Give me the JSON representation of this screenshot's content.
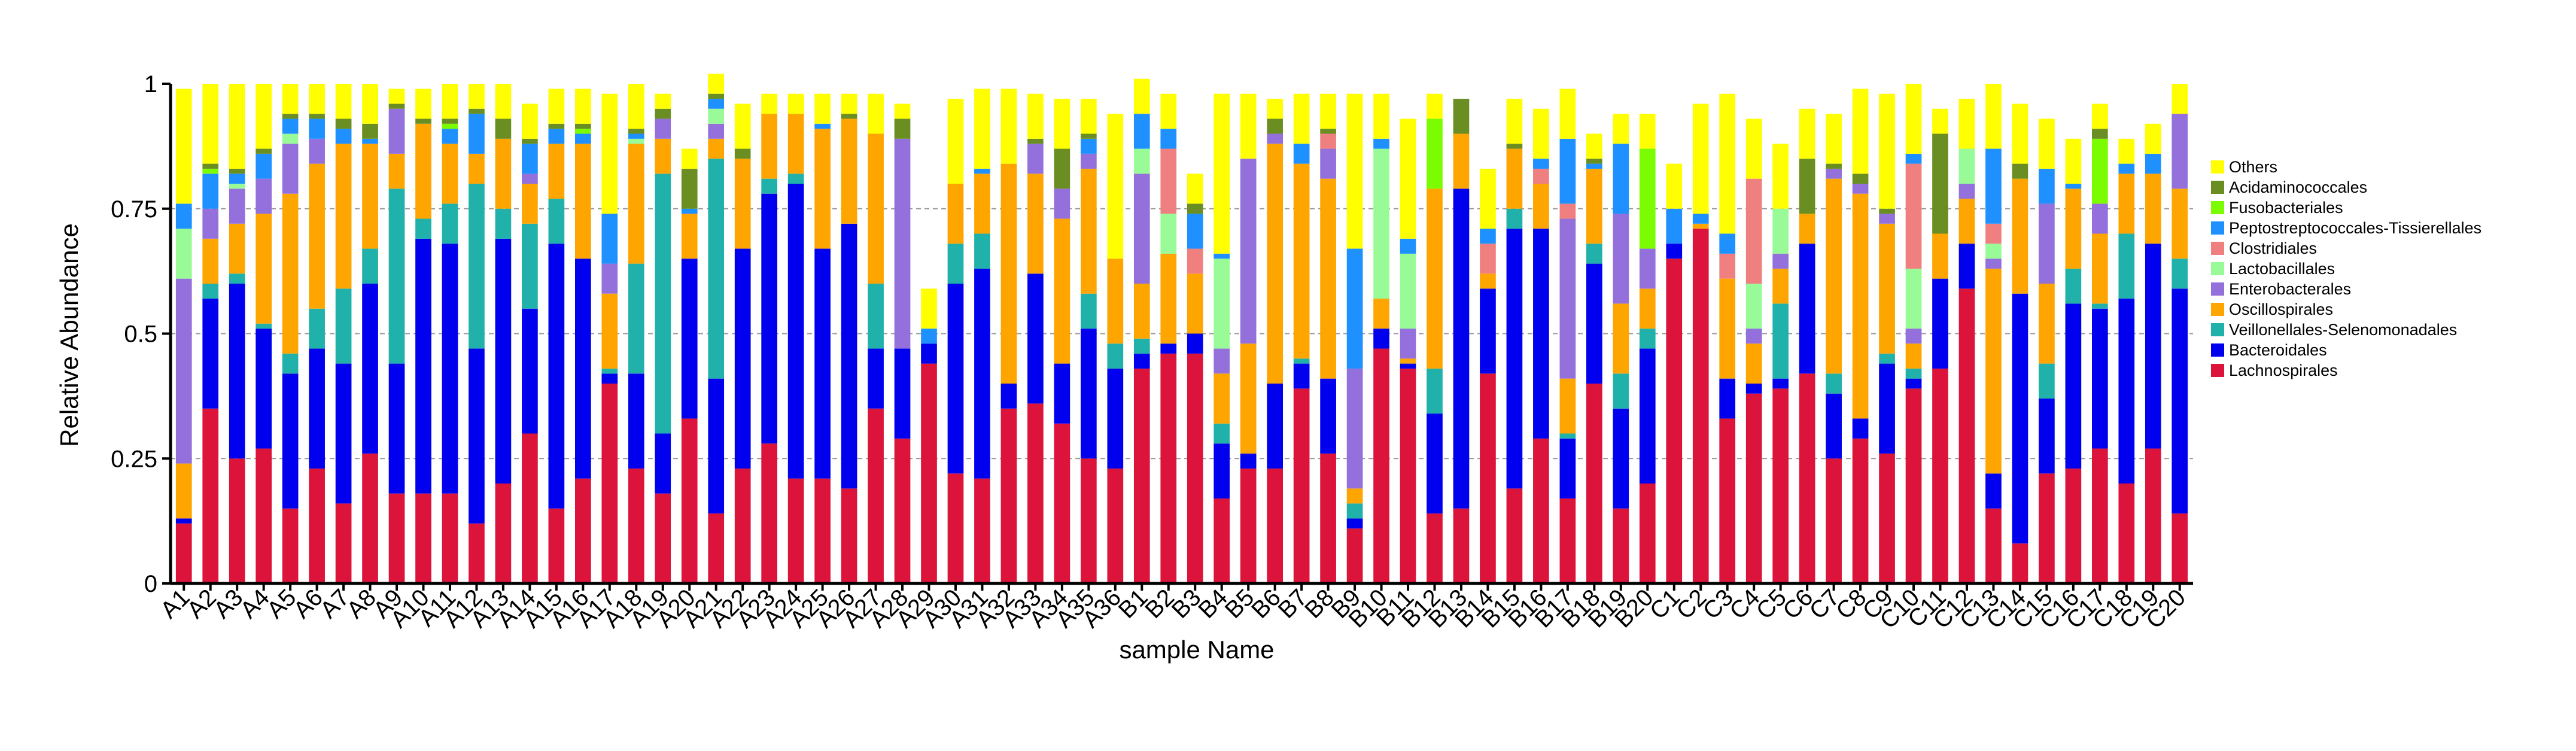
{
  "chart_data": {
    "type": "bar",
    "stacked": true,
    "title": "",
    "xlabel": "sample Name",
    "ylabel": "Relative Abundance",
    "ylim": [
      0,
      1
    ],
    "yticks": [
      0,
      0.25,
      0.5,
      0.75,
      1
    ],
    "ytick_labels": [
      "0",
      "0.25",
      "0.5",
      "0.75",
      "1"
    ],
    "grid": "dashed horizontal lines at 0.25, 0.5, 0.75",
    "legend_position": "right",
    "categories": [
      "A1",
      "A2",
      "A3",
      "A4",
      "A5",
      "A6",
      "A7",
      "A8",
      "A9",
      "A10",
      "A11",
      "A12",
      "A13",
      "A14",
      "A15",
      "A16",
      "A17",
      "A18",
      "A19",
      "A20",
      "A21",
      "A22",
      "A23",
      "A24",
      "A25",
      "A26",
      "A27",
      "A28",
      "A29",
      "A30",
      "A31",
      "A32",
      "A33",
      "A34",
      "A35",
      "A36",
      "B1",
      "B2",
      "B3",
      "B4",
      "B5",
      "B6",
      "B7",
      "B8",
      "B9",
      "B10",
      "B11",
      "B12",
      "B13",
      "B14",
      "B15",
      "B16",
      "B17",
      "B18",
      "B19",
      "B20",
      "C1",
      "C2",
      "C3",
      "C4",
      "C5",
      "C6",
      "C7",
      "C8",
      "C9",
      "C10",
      "C11",
      "C12",
      "C13",
      "C14",
      "C15",
      "C16",
      "C17",
      "C18",
      "C19",
      "C20"
    ],
    "series": [
      {
        "name": "Lachnospirales",
        "color": "#dc143c",
        "values": [
          0.12,
          0.35,
          0.25,
          0.27,
          0.15,
          0.23,
          0.16,
          0.26,
          0.18,
          0.18,
          0.18,
          0.12,
          0.2,
          0.3,
          0.15,
          0.21,
          0.4,
          0.23,
          0.18,
          0.33,
          0.14,
          0.23,
          0.28,
          0.21,
          0.21,
          0.19,
          0.35,
          0.29,
          0.44,
          0.22,
          0.21,
          0.35,
          0.36,
          0.32,
          0.25,
          0.23,
          0.43,
          0.46,
          0.46,
          0.17,
          0.23,
          0.23,
          0.39,
          0.26,
          0.11,
          0.47,
          0.43,
          0.14,
          0.15,
          0.42,
          0.19,
          0.29,
          0.17,
          0.4,
          0.15,
          0.2,
          0.65,
          0.71,
          0.33,
          0.38,
          0.39,
          0.42,
          0.25,
          0.29,
          0.26,
          0.39,
          0.43,
          0.59,
          0.15,
          0.08,
          0.22,
          0.23,
          0.27,
          0.2,
          0.27,
          0.14
        ]
      },
      {
        "name": "Bacteroidales",
        "color": "#0000ee",
        "values": [
          0.01,
          0.22,
          0.35,
          0.24,
          0.27,
          0.24,
          0.28,
          0.34,
          0.26,
          0.51,
          0.5,
          0.35,
          0.49,
          0.25,
          0.53,
          0.44,
          0.02,
          0.19,
          0.12,
          0.32,
          0.27,
          0.44,
          0.5,
          0.59,
          0.46,
          0.53,
          0.12,
          0.18,
          0.04,
          0.38,
          0.42,
          0.05,
          0.26,
          0.12,
          0.26,
          0.2,
          0.03,
          0.02,
          0.04,
          0.11,
          0.03,
          0.17,
          0.05,
          0.15,
          0.02,
          0.04,
          0.01,
          0.2,
          0.64,
          0.17,
          0.52,
          0.42,
          0.12,
          0.24,
          0.2,
          0.27,
          0.03,
          0.0,
          0.08,
          0.02,
          0.02,
          0.26,
          0.13,
          0.04,
          0.18,
          0.02,
          0.18,
          0.09,
          0.07,
          0.5,
          0.15,
          0.33,
          0.28,
          0.37,
          0.41,
          0.45
        ]
      },
      {
        "name": "Veillonellales-Selenomonadales",
        "color": "#20b2aa",
        "values": [
          0.0,
          0.03,
          0.02,
          0.01,
          0.04,
          0.08,
          0.15,
          0.07,
          0.35,
          0.04,
          0.08,
          0.33,
          0.06,
          0.17,
          0.09,
          0.0,
          0.01,
          0.22,
          0.52,
          0.0,
          0.44,
          0.0,
          0.03,
          0.02,
          0.0,
          0.0,
          0.13,
          0.0,
          0.0,
          0.08,
          0.07,
          0.0,
          0.0,
          0.0,
          0.07,
          0.05,
          0.03,
          0.0,
          0.0,
          0.04,
          0.0,
          0.0,
          0.01,
          0.0,
          0.03,
          0.0,
          0.0,
          0.09,
          0.0,
          0.0,
          0.04,
          0.0,
          0.01,
          0.04,
          0.07,
          0.04,
          0.0,
          0.0,
          0.0,
          0.0,
          0.15,
          0.0,
          0.04,
          0.0,
          0.02,
          0.02,
          0.0,
          0.0,
          0.0,
          0.0,
          0.07,
          0.07,
          0.01,
          0.13,
          0.0,
          0.06
        ]
      },
      {
        "name": "Oscillospirales",
        "color": "#ffa500",
        "values": [
          0.11,
          0.09,
          0.1,
          0.22,
          0.32,
          0.29,
          0.29,
          0.21,
          0.07,
          0.19,
          0.12,
          0.06,
          0.14,
          0.08,
          0.11,
          0.23,
          0.15,
          0.24,
          0.07,
          0.09,
          0.04,
          0.18,
          0.13,
          0.12,
          0.24,
          0.21,
          0.3,
          0.0,
          0.0,
          0.12,
          0.12,
          0.44,
          0.2,
          0.29,
          0.25,
          0.17,
          0.11,
          0.18,
          0.12,
          0.1,
          0.22,
          0.48,
          0.39,
          0.4,
          0.03,
          0.06,
          0.01,
          0.36,
          0.11,
          0.03,
          0.12,
          0.09,
          0.11,
          0.15,
          0.14,
          0.08,
          0.0,
          0.01,
          0.2,
          0.08,
          0.07,
          0.06,
          0.39,
          0.45,
          0.26,
          0.05,
          0.09,
          0.09,
          0.41,
          0.23,
          0.16,
          0.16,
          0.14,
          0.12,
          0.14,
          0.14
        ]
      },
      {
        "name": "Enterobacterales",
        "color": "#9370db",
        "values": [
          0.37,
          0.06,
          0.07,
          0.07,
          0.1,
          0.05,
          0.0,
          0.0,
          0.09,
          0.0,
          0.0,
          0.0,
          0.0,
          0.02,
          0.0,
          0.0,
          0.06,
          0.0,
          0.04,
          0.0,
          0.03,
          0.0,
          0.0,
          0.0,
          0.0,
          0.0,
          0.0,
          0.42,
          0.0,
          0.0,
          0.0,
          0.0,
          0.06,
          0.06,
          0.03,
          0.0,
          0.22,
          0.0,
          0.0,
          0.05,
          0.37,
          0.02,
          0.0,
          0.06,
          0.24,
          0.0,
          0.06,
          0.0,
          0.0,
          0.0,
          0.0,
          0.0,
          0.32,
          0.0,
          0.18,
          0.08,
          0.0,
          0.0,
          0.0,
          0.03,
          0.03,
          0.0,
          0.02,
          0.02,
          0.02,
          0.03,
          0.0,
          0.03,
          0.02,
          0.0,
          0.16,
          0.0,
          0.06,
          0.0,
          0.0,
          0.15
        ]
      },
      {
        "name": "Lactobacillales",
        "color": "#98fb98",
        "values": [
          0.1,
          0.0,
          0.01,
          0.0,
          0.02,
          0.0,
          0.0,
          0.0,
          0.0,
          0.0,
          0.0,
          0.0,
          0.0,
          0.0,
          0.0,
          0.0,
          0.0,
          0.01,
          0.0,
          0.0,
          0.03,
          0.0,
          0.0,
          0.0,
          0.0,
          0.0,
          0.0,
          0.0,
          0.0,
          0.0,
          0.0,
          0.0,
          0.0,
          0.0,
          0.0,
          0.0,
          0.05,
          0.08,
          0.0,
          0.18,
          0.0,
          0.0,
          0.0,
          0.0,
          0.0,
          0.3,
          0.15,
          0.0,
          0.0,
          0.0,
          0.0,
          0.0,
          0.0,
          0.0,
          0.0,
          0.0,
          0.0,
          0.0,
          0.0,
          0.09,
          0.09,
          0.0,
          0.0,
          0.0,
          0.0,
          0.12,
          0.0,
          0.07,
          0.03,
          0.0,
          0.0,
          0.0,
          0.0,
          0.0,
          0.0,
          0.0
        ]
      },
      {
        "name": "Clostridiales",
        "color": "#f08080",
        "values": [
          0.0,
          0.0,
          0.0,
          0.0,
          0.0,
          0.0,
          0.0,
          0.0,
          0.0,
          0.0,
          0.0,
          0.0,
          0.0,
          0.0,
          0.0,
          0.0,
          0.0,
          0.0,
          0.0,
          0.0,
          0.0,
          0.0,
          0.0,
          0.0,
          0.0,
          0.0,
          0.0,
          0.0,
          0.0,
          0.0,
          0.0,
          0.0,
          0.0,
          0.0,
          0.0,
          0.0,
          0.0,
          0.13,
          0.05,
          0.0,
          0.0,
          0.0,
          0.0,
          0.03,
          0.0,
          0.0,
          0.0,
          0.0,
          0.0,
          0.06,
          0.0,
          0.03,
          0.03,
          0.0,
          0.0,
          0.0,
          0.0,
          0.0,
          0.05,
          0.21,
          0.0,
          0.0,
          0.0,
          0.0,
          0.0,
          0.21,
          0.0,
          0.0,
          0.04,
          0.0,
          0.0,
          0.0,
          0.0,
          0.0,
          0.0,
          0.0
        ]
      },
      {
        "name": "Peptostreptococcales-Tissierellales",
        "color": "#1e90ff",
        "values": [
          0.05,
          0.07,
          0.02,
          0.05,
          0.03,
          0.04,
          0.03,
          0.01,
          0.0,
          0.0,
          0.03,
          0.08,
          0.0,
          0.06,
          0.03,
          0.02,
          0.1,
          0.01,
          0.0,
          0.01,
          0.02,
          0.0,
          0.0,
          0.0,
          0.01,
          0.0,
          0.0,
          0.0,
          0.03,
          0.0,
          0.01,
          0.0,
          0.0,
          0.0,
          0.03,
          0.0,
          0.07,
          0.04,
          0.07,
          0.01,
          0.0,
          0.0,
          0.04,
          0.0,
          0.24,
          0.02,
          0.03,
          0.0,
          0.0,
          0.03,
          0.0,
          0.02,
          0.13,
          0.01,
          0.14,
          0.0,
          0.07,
          0.02,
          0.04,
          0.0,
          0.0,
          0.0,
          0.0,
          0.0,
          0.0,
          0.02,
          0.0,
          0.0,
          0.15,
          0.0,
          0.07,
          0.01,
          0.0,
          0.02,
          0.04,
          0.0
        ]
      },
      {
        "name": "Fusobacteriales",
        "color": "#7cfc00",
        "values": [
          0.0,
          0.01,
          0.0,
          0.0,
          0.0,
          0.0,
          0.0,
          0.0,
          0.0,
          0.0,
          0.01,
          0.0,
          0.0,
          0.0,
          0.0,
          0.01,
          0.0,
          0.0,
          0.0,
          0.0,
          0.0,
          0.0,
          0.0,
          0.0,
          0.0,
          0.0,
          0.0,
          0.0,
          0.0,
          0.0,
          0.0,
          0.0,
          0.0,
          0.0,
          0.0,
          0.0,
          0.0,
          0.0,
          0.0,
          0.0,
          0.0,
          0.0,
          0.0,
          0.0,
          0.0,
          0.0,
          0.0,
          0.14,
          0.0,
          0.0,
          0.0,
          0.0,
          0.0,
          0.0,
          0.0,
          0.2,
          0.0,
          0.0,
          0.0,
          0.0,
          0.0,
          0.0,
          0.0,
          0.0,
          0.0,
          0.0,
          0.0,
          0.0,
          0.0,
          0.0,
          0.0,
          0.0,
          0.13,
          0.0,
          0.0,
          0.0
        ]
      },
      {
        "name": "Acidaminococcales",
        "color": "#6b8e23",
        "values": [
          0.0,
          0.01,
          0.01,
          0.01,
          0.01,
          0.01,
          0.02,
          0.03,
          0.01,
          0.01,
          0.01,
          0.01,
          0.04,
          0.01,
          0.01,
          0.01,
          0.0,
          0.01,
          0.02,
          0.08,
          0.01,
          0.02,
          0.0,
          0.0,
          0.0,
          0.01,
          0.0,
          0.04,
          0.0,
          0.0,
          0.0,
          0.0,
          0.01,
          0.08,
          0.01,
          0.0,
          0.0,
          0.0,
          0.02,
          0.0,
          0.0,
          0.03,
          0.0,
          0.01,
          0.0,
          0.0,
          0.0,
          0.0,
          0.07,
          0.0,
          0.01,
          0.0,
          0.0,
          0.01,
          0.0,
          0.0,
          0.0,
          0.0,
          0.0,
          0.0,
          0.0,
          0.11,
          0.01,
          0.02,
          0.01,
          0.0,
          0.2,
          0.0,
          0.0,
          0.03,
          0.0,
          0.0,
          0.02,
          0.0,
          0.0,
          0.0
        ]
      },
      {
        "name": "Others",
        "color": "#ffff00",
        "values": [
          0.23,
          0.16,
          0.17,
          0.13,
          0.06,
          0.06,
          0.07,
          0.08,
          0.03,
          0.06,
          0.07,
          0.05,
          0.07,
          0.07,
          0.07,
          0.07,
          0.24,
          0.09,
          0.03,
          0.04,
          0.04,
          0.09,
          0.04,
          0.04,
          0.06,
          0.04,
          0.08,
          0.03,
          0.08,
          0.17,
          0.16,
          0.15,
          0.09,
          0.1,
          0.07,
          0.29,
          0.07,
          0.07,
          0.06,
          0.32,
          0.13,
          0.04,
          0.1,
          0.07,
          0.31,
          0.09,
          0.24,
          0.05,
          0.0,
          0.12,
          0.09,
          0.1,
          0.1,
          0.05,
          0.06,
          0.07,
          0.09,
          0.22,
          0.28,
          0.12,
          0.13,
          0.1,
          0.1,
          0.17,
          0.23,
          0.14,
          0.05,
          0.1,
          0.13,
          0.12,
          0.1,
          0.09,
          0.05,
          0.05,
          0.06,
          0.06
        ]
      }
    ]
  }
}
